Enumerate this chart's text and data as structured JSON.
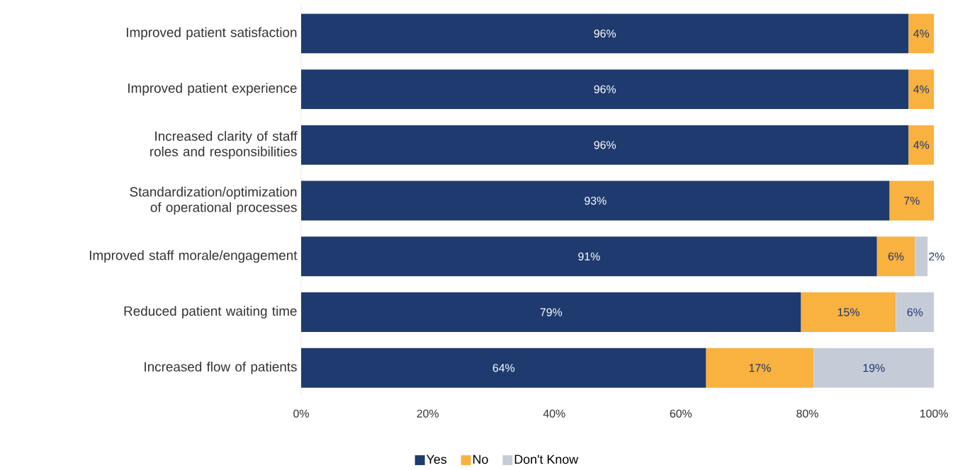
{
  "chart_data": {
    "type": "bar",
    "orientation": "horizontal",
    "stacked": true,
    "categories": [
      "Improved patient satisfaction",
      "Improved patient experience",
      "Increased clarity of staff roles and responsibilities",
      "Standardization/optimization of operational processes",
      "Improved staff morale/engagement",
      "Reduced patient waiting time",
      "Increased flow of patients"
    ],
    "series": [
      {
        "name": "Yes",
        "color": "#1f3a6e",
        "values": [
          96,
          96,
          96,
          93,
          91,
          79,
          64
        ],
        "value_labels": [
          "96%",
          "96%",
          "96%",
          "93%",
          "91%",
          "79%",
          "64%"
        ]
      },
      {
        "name": "No",
        "color": "#f9b13f",
        "values": [
          4,
          4,
          4,
          7,
          6,
          15,
          17
        ],
        "value_labels": [
          "4%",
          "4%",
          "4%",
          "7%",
          "6%",
          "15%",
          "17%"
        ]
      },
      {
        "name": "Don't Know",
        "color": "#c5ccd8",
        "values": [
          null,
          null,
          null,
          null,
          2,
          6,
          19
        ],
        "value_labels": [
          null,
          null,
          null,
          null,
          "2%",
          "6%",
          "19%"
        ]
      }
    ],
    "xlim": [
      0,
      100
    ],
    "xticks": [
      {
        "value": 0,
        "label": "0%"
      },
      {
        "value": 20,
        "label": "20%"
      },
      {
        "value": 40,
        "label": "40%"
      },
      {
        "value": 60,
        "label": "60%"
      },
      {
        "value": 80,
        "label": "80%"
      },
      {
        "value": 100,
        "label": "100%"
      }
    ],
    "legend": "bottom"
  }
}
